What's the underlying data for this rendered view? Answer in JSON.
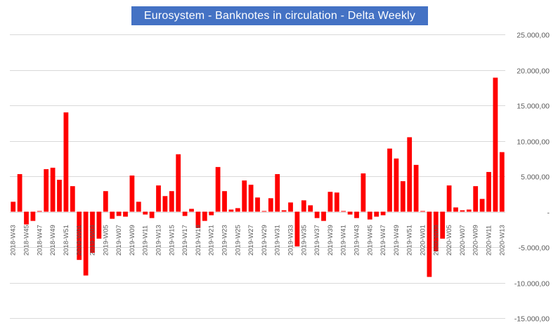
{
  "chart_data": {
    "type": "bar",
    "title": "Eurosystem - Banknotes in circulation - Delta Weekly",
    "xlabel": "",
    "ylabel": "",
    "ylim": [
      -15000,
      25000
    ],
    "ytick_values": [
      -15000,
      -10000,
      -5000,
      0,
      5000,
      10000,
      15000,
      20000,
      25000
    ],
    "ytick_labels": [
      "-15.000,00",
      "-10.000,00",
      "-5.000,00",
      "-",
      "5.000,00",
      "10.000,00",
      "15.000,00",
      "20.000,00",
      "25.000,00"
    ],
    "grid": true,
    "bar_color": "#ff0000",
    "categories": [
      "2018-W43",
      "2018-W44",
      "2018-W45",
      "2018-W46",
      "2018-W47",
      "2018-W48",
      "2018-W49",
      "2018-W50",
      "2018-W51",
      "2018-W52",
      "2019-W01",
      "2019-W02",
      "2019-W03",
      "2019-W04",
      "2019-W05",
      "2019-W06",
      "2019-W07",
      "2019-W08",
      "2019-W09",
      "2019-W10",
      "2019-W11",
      "2019-W12",
      "2019-W13",
      "2019-W14",
      "2019-W15",
      "2019-W16",
      "2019-W17",
      "2019-W18",
      "2019-W19",
      "2019-W20",
      "2019-W21",
      "2019-W22",
      "2019-W23",
      "2019-W24",
      "2019-W25",
      "2019-W26",
      "2019-W27",
      "2019-W28",
      "2019-W29",
      "2019-W30",
      "2019-W31",
      "2019-W32",
      "2019-W33",
      "2019-W34",
      "2019-W35",
      "2019-W36",
      "2019-W37",
      "2019-W38",
      "2019-W39",
      "2019-W40",
      "2019-W41",
      "2019-W42",
      "2019-W43",
      "2019-W44",
      "2019-W45",
      "2019-W46",
      "2019-W47",
      "2019-W48",
      "2019-W49",
      "2019-W50",
      "2019-W51",
      "2019-W52",
      "2020-W01",
      "2020-W02",
      "2020-W03",
      "2020-W04",
      "2020-W05",
      "2020-W06",
      "2020-W07",
      "2020-W08",
      "2020-W09",
      "2020-W10",
      "2020-W11",
      "2020-W12",
      "2020-W13"
    ],
    "values": [
      1400,
      5300,
      -1800,
      -1300,
      100,
      6000,
      6200,
      4500,
      14000,
      3600,
      -6800,
      -9000,
      -5800,
      -3800,
      2900,
      -1000,
      -600,
      -700,
      5100,
      1400,
      -400,
      -900,
      3700,
      2200,
      2900,
      8100,
      -600,
      400,
      -2300,
      -1300,
      -500,
      6300,
      2900,
      300,
      500,
      4400,
      3800,
      2000,
      100,
      1900,
      5300,
      200,
      1300,
      -4900,
      1600,
      900,
      -900,
      -1300,
      2800,
      2700,
      100,
      -400,
      -900,
      5400,
      -1100,
      -700,
      -500,
      8900,
      7500,
      4300,
      10500,
      6600,
      100,
      -9200,
      -5600,
      -3800,
      3700,
      600,
      200,
      300,
      3600,
      1800,
      5600,
      18900,
      8400
    ],
    "shown_tick_labels": [
      "2018-W43",
      "2018-W45",
      "2018-W47",
      "2018-W49",
      "2018-W51",
      "2019-W01",
      "2019-W03",
      "2019-W05",
      "2019-W07",
      "2019-W09",
      "2019-W11",
      "2019-W13",
      "2019-W15",
      "2019-W17",
      "2019-W19",
      "2019-W21",
      "2019-W23",
      "2019-W25",
      "2019-W27",
      "2019-W29",
      "2019-W31",
      "2019-W33",
      "2019-W35",
      "2019-W37",
      "2019-W39",
      "2019-W41",
      "2019-W43",
      "2019-W45",
      "2019-W47",
      "2019-W49",
      "2019-W51",
      "2020-W01",
      "2020-W03",
      "2020-W05",
      "2020-W07",
      "2020-W09",
      "2020-W11",
      "2020-W13"
    ]
  }
}
